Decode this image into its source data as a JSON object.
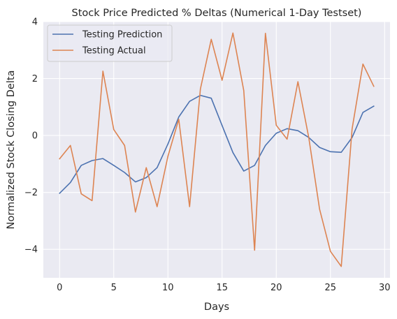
{
  "chart_data": {
    "type": "line",
    "title": "Stock Price Predicted % Deltas (Numerical 1-Day Testset)",
    "xlabel": "Days",
    "ylabel": "Normalized Stock Closing Delta",
    "xlim": [
      -1.5,
      30.5
    ],
    "ylim": [
      -5.0,
      4.0
    ],
    "xticks": [
      0,
      5,
      10,
      15,
      20,
      25,
      30
    ],
    "yticks": [
      -4,
      -2,
      0,
      2,
      4
    ],
    "grid": true,
    "legend_position": "top-left",
    "x": [
      0,
      1,
      2,
      3,
      4,
      5,
      6,
      7,
      8,
      9,
      10,
      11,
      12,
      13,
      14,
      15,
      16,
      17,
      18,
      19,
      20,
      21,
      22,
      23,
      24,
      25,
      26,
      27,
      28,
      29
    ],
    "series": [
      {
        "name": "Testing Prediction",
        "color": "#4c72b0",
        "values": [
          -2.03,
          -1.65,
          -1.05,
          -0.88,
          -0.81,
          -1.05,
          -1.3,
          -1.63,
          -1.48,
          -1.13,
          -0.3,
          0.65,
          1.2,
          1.41,
          1.31,
          0.35,
          -0.6,
          -1.25,
          -1.05,
          -0.35,
          0.08,
          0.24,
          0.17,
          -0.07,
          -0.42,
          -0.57,
          -0.59,
          -0.07,
          0.81,
          1.03
        ]
      },
      {
        "name": "Testing Actual",
        "color": "#dd8452",
        "values": [
          -0.82,
          -0.35,
          -2.05,
          -2.29,
          2.26,
          0.21,
          -0.35,
          -2.69,
          -1.13,
          -2.5,
          -0.73,
          0.57,
          -2.5,
          1.64,
          3.38,
          1.94,
          3.6,
          1.58,
          -4.03,
          3.59,
          0.36,
          -0.13,
          1.89,
          -0.07,
          -2.59,
          -4.07,
          -4.6,
          0.23,
          2.51,
          1.73
        ]
      }
    ]
  }
}
